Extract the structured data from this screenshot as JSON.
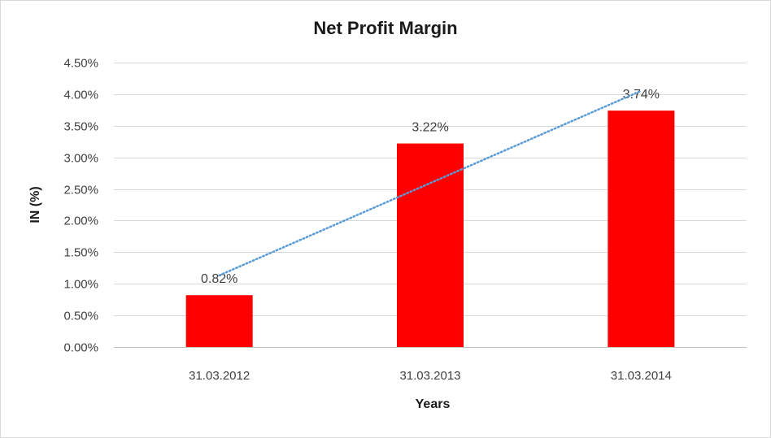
{
  "chart_data": {
    "type": "bar",
    "title": "Net Profit Margin",
    "xlabel": "Years",
    "ylabel": "IN (%)",
    "categories": [
      "31.03.2012",
      "31.03.2013",
      "31.03.2014"
    ],
    "values": [
      0.82,
      3.22,
      3.74
    ],
    "data_labels": [
      "0.82%",
      "3.22%",
      "3.74%"
    ],
    "ylim": [
      0,
      4.5
    ],
    "y_ticks": [
      0,
      0.5,
      1.0,
      1.5,
      2.0,
      2.5,
      3.0,
      3.5,
      4.0,
      4.5
    ],
    "y_tick_labels": [
      "0.00%",
      "0.50%",
      "1.00%",
      "1.50%",
      "2.00%",
      "2.50%",
      "3.00%",
      "3.50%",
      "4.00%",
      "4.50%"
    ],
    "grid": true,
    "legend": "none",
    "bar_color": "#ff0000",
    "trendline": {
      "type": "linear",
      "style": "dotted",
      "color": "#5b9bd5"
    }
  }
}
